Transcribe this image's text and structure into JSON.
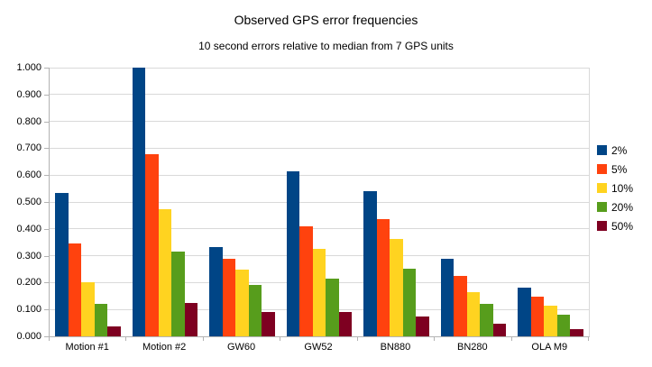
{
  "chart_data": {
    "type": "bar",
    "title": "Observed GPS error frequencies",
    "subtitle": "10 second errors relative to median from 7 GPS units",
    "categories": [
      "Motion #1",
      "Motion #2",
      "GW60",
      "GW52",
      "BN880",
      "BN280",
      "OLA M9"
    ],
    "series": [
      {
        "name": "2%",
        "color": "#004586",
        "values": [
          0.535,
          1.0,
          0.333,
          0.614,
          0.54,
          0.287,
          0.18
        ]
      },
      {
        "name": "5%",
        "color": "#ff420e",
        "values": [
          0.345,
          0.678,
          0.29,
          0.41,
          0.437,
          0.225,
          0.147
        ]
      },
      {
        "name": "10%",
        "color": "#ffd320",
        "values": [
          0.2,
          0.472,
          0.247,
          0.325,
          0.362,
          0.165,
          0.113
        ]
      },
      {
        "name": "20%",
        "color": "#579d1c",
        "values": [
          0.122,
          0.316,
          0.193,
          0.214,
          0.253,
          0.12,
          0.08
        ]
      },
      {
        "name": "50%",
        "color": "#7e0021",
        "values": [
          0.037,
          0.125,
          0.089,
          0.089,
          0.073,
          0.048,
          0.027
        ]
      }
    ],
    "xlabel": "",
    "ylabel": "",
    "ylim": [
      0,
      1.0
    ],
    "ytick_labels": [
      "0.000",
      "0.100",
      "0.200",
      "0.300",
      "0.400",
      "0.500",
      "0.600",
      "0.700",
      "0.800",
      "0.900",
      "1.000"
    ],
    "grid": true,
    "legend_position": "right"
  },
  "colors": {
    "background": "#ffffff",
    "gridline": "#d9d9d9",
    "axis": "#b3b3b3",
    "text": "#000000"
  }
}
